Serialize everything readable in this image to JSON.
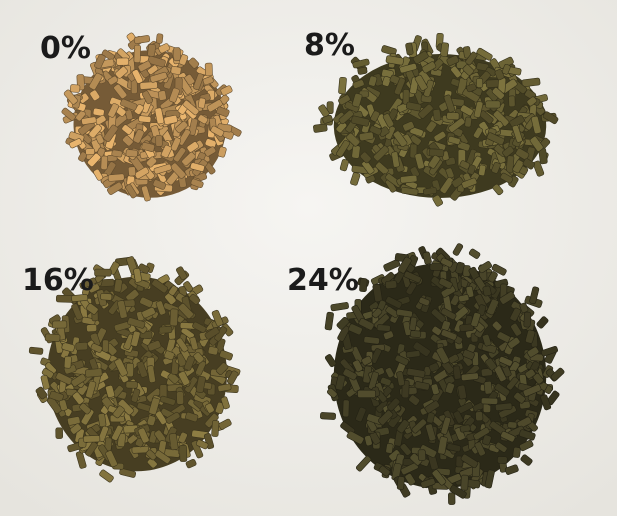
{
  "panels": [
    {
      "label": "0%"
    },
    {
      "label": "8%"
    },
    {
      "label": "16%"
    },
    {
      "label": "24%"
    }
  ]
}
